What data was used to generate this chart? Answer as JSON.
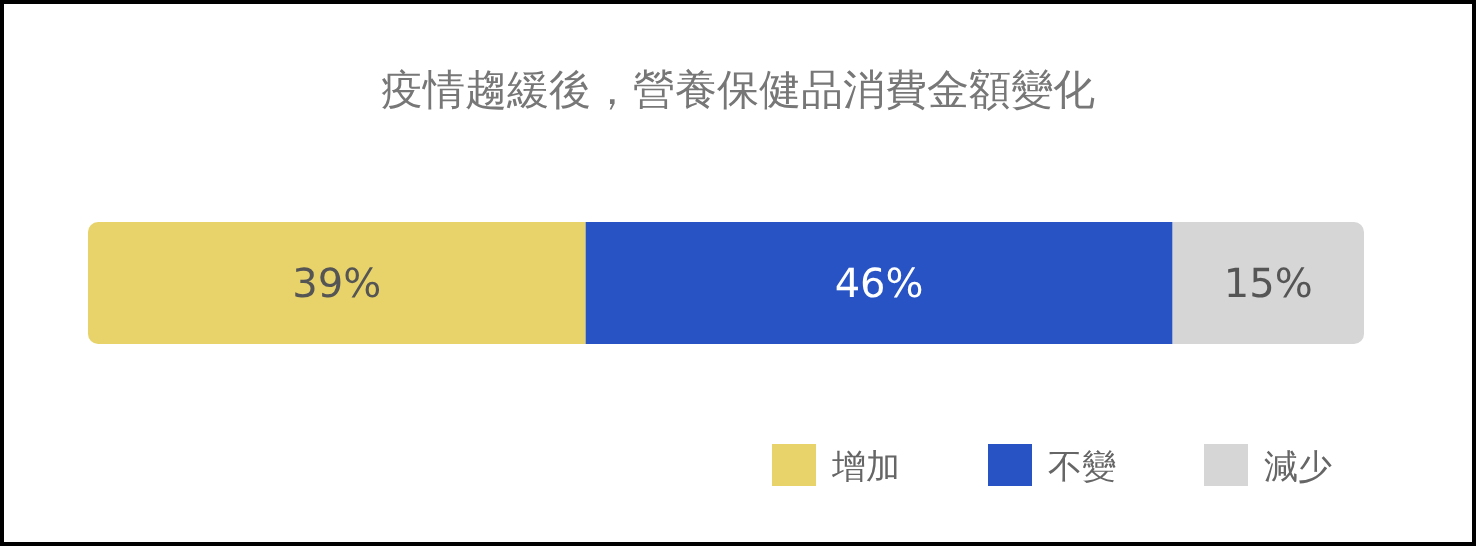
{
  "chart_data": {
    "type": "bar",
    "title": "疫情趨緩後，營養保健品消費金額變化",
    "orientation": "horizontal",
    "stacked": true,
    "categories": [
      null
    ],
    "legend": "bottom right",
    "series": [
      {
        "name": "增加",
        "color": "#e8d36a",
        "values": [
          39
        ],
        "value_labels": [
          "39%"
        ]
      },
      {
        "name": "不變",
        "color": "#2753c5",
        "values": [
          46
        ],
        "value_labels": [
          "46%"
        ]
      },
      {
        "name": "減少",
        "color": "#d6d6d6",
        "values": [
          15
        ],
        "value_labels": [
          "15%"
        ]
      }
    ]
  }
}
